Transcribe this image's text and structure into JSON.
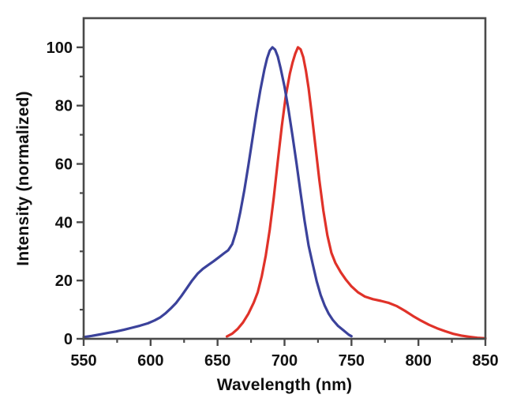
{
  "chart_data": {
    "type": "line",
    "title": "",
    "xlabel": "Wavelength (nm)",
    "ylabel": "Intensity (normalized)",
    "xlim": [
      550,
      850
    ],
    "ylim": [
      0,
      110
    ],
    "x_major_ticks": [
      550,
      600,
      650,
      700,
      750,
      800,
      850
    ],
    "x_minor_ticks": [
      575,
      625,
      675,
      725,
      775,
      825
    ],
    "y_major_ticks": [
      0,
      20,
      40,
      60,
      80,
      100
    ],
    "y_minor_ticks": [
      10,
      30,
      50,
      70,
      90
    ],
    "grid": false,
    "legend_position": "none",
    "frame": "box",
    "colors": {
      "axis": "#4a4a4a",
      "tick_text": "#121212",
      "background": "#ffffff",
      "blue_series": "#3b429b",
      "red_series": "#e03229"
    },
    "series": [
      {
        "name": "red-curve",
        "peak_nm": 710,
        "peak_intensity": 100,
        "color_key": "red_series",
        "points": [
          [
            657,
            0.8
          ],
          [
            661,
            1.8
          ],
          [
            665,
            3.4
          ],
          [
            669,
            5.6
          ],
          [
            673,
            8.6
          ],
          [
            677,
            12.4
          ],
          [
            680,
            16.0
          ],
          [
            683,
            21.5
          ],
          [
            686,
            28.5
          ],
          [
            689,
            37.5
          ],
          [
            692,
            48.5
          ],
          [
            695,
            61.0
          ],
          [
            698,
            73.0
          ],
          [
            701,
            83.5
          ],
          [
            704,
            91.0
          ],
          [
            706,
            94.8
          ],
          [
            708,
            97.8
          ],
          [
            710,
            100.0
          ],
          [
            712,
            99.3
          ],
          [
            714,
            96.6
          ],
          [
            716,
            92.0
          ],
          [
            718,
            86.0
          ],
          [
            720,
            78.5
          ],
          [
            723,
            66.5
          ],
          [
            726,
            54.5
          ],
          [
            729,
            44.0
          ],
          [
            732,
            35.5
          ],
          [
            735,
            29.5
          ],
          [
            738,
            26.0
          ],
          [
            742,
            22.8
          ],
          [
            746,
            20.2
          ],
          [
            750,
            18.0
          ],
          [
            755,
            15.9
          ],
          [
            760,
            14.5
          ],
          [
            766,
            13.6
          ],
          [
            772,
            13.0
          ],
          [
            778,
            12.3
          ],
          [
            784,
            11.2
          ],
          [
            790,
            9.6
          ],
          [
            796,
            7.8
          ],
          [
            802,
            6.2
          ],
          [
            808,
            4.8
          ],
          [
            814,
            3.6
          ],
          [
            820,
            2.6
          ],
          [
            826,
            1.7
          ],
          [
            832,
            1.1
          ],
          [
            838,
            0.7
          ],
          [
            844,
            0.35
          ],
          [
            850,
            0.15
          ]
        ]
      },
      {
        "name": "blue-curve",
        "peak_nm": 690,
        "peak_intensity": 100,
        "color_key": "blue_series",
        "points": [
          [
            550,
            0.6
          ],
          [
            556,
            1.0
          ],
          [
            562,
            1.5
          ],
          [
            568,
            2.0
          ],
          [
            574,
            2.5
          ],
          [
            580,
            3.1
          ],
          [
            586,
            3.8
          ],
          [
            592,
            4.5
          ],
          [
            598,
            5.3
          ],
          [
            603,
            6.3
          ],
          [
            607,
            7.3
          ],
          [
            611,
            8.7
          ],
          [
            615,
            10.4
          ],
          [
            619,
            12.3
          ],
          [
            623,
            14.7
          ],
          [
            627,
            17.3
          ],
          [
            631,
            20.0
          ],
          [
            635,
            22.3
          ],
          [
            639,
            24.0
          ],
          [
            643,
            25.3
          ],
          [
            647,
            26.6
          ],
          [
            651,
            28.0
          ],
          [
            655,
            29.4
          ],
          [
            658,
            30.4
          ],
          [
            661,
            32.5
          ],
          [
            664,
            37.0
          ],
          [
            667,
            43.5
          ],
          [
            670,
            51.0
          ],
          [
            673,
            59.5
          ],
          [
            676,
            68.5
          ],
          [
            679,
            77.5
          ],
          [
            682,
            85.5
          ],
          [
            685,
            92.5
          ],
          [
            687,
            96.2
          ],
          [
            689,
            98.9
          ],
          [
            691,
            100.0
          ],
          [
            693,
            99.2
          ],
          [
            695,
            96.8
          ],
          [
            697,
            93.0
          ],
          [
            700,
            86.5
          ],
          [
            703,
            78.5
          ],
          [
            706,
            69.5
          ],
          [
            709,
            60.0
          ],
          [
            712,
            50.0
          ],
          [
            715,
            40.5
          ],
          [
            718,
            32.0
          ],
          [
            721,
            25.8
          ],
          [
            724,
            19.8
          ],
          [
            727,
            15.0
          ],
          [
            730,
            11.4
          ],
          [
            733,
            8.6
          ],
          [
            736,
            6.5
          ],
          [
            740,
            4.4
          ],
          [
            744,
            2.9
          ],
          [
            748,
            1.4
          ],
          [
            750,
            0.9
          ]
        ]
      }
    ]
  }
}
